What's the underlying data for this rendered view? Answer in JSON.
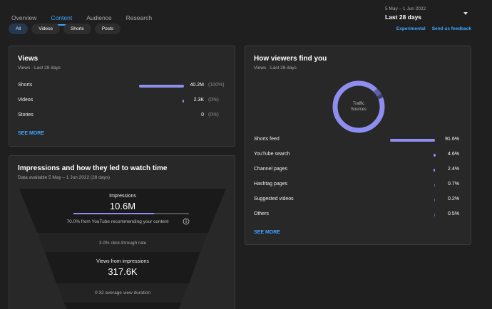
{
  "tabs": [
    "Overview",
    "Content",
    "Audience",
    "Research"
  ],
  "date": {
    "range": "5 May – 1 Jun 2022",
    "period": "Last 28 days"
  },
  "chips": [
    "All",
    "Videos",
    "Shorts",
    "Posts"
  ],
  "links": {
    "experimental": "Experimental",
    "feedback": "Send us feedback"
  },
  "views": {
    "title": "Views",
    "subtitle": "Views · Last 28 days",
    "rows": [
      {
        "label": "Shorts",
        "value": "40.2M",
        "pct": "(100%)",
        "share": 1.0
      },
      {
        "label": "Videos",
        "value": "2.3K",
        "pct": "(0%)",
        "share": 0.0
      },
      {
        "label": "Stories",
        "value": "0",
        "pct": "(0%)",
        "share": 0.0
      }
    ],
    "see_more": "SEE MORE"
  },
  "find": {
    "title": "How viewers find you",
    "subtitle": "Views · Last 28 days",
    "donut_line1": "Traffic",
    "donut_line2": "Sources",
    "rows": [
      {
        "label": "Shorts feed",
        "value": "91.6%",
        "share": 0.916
      },
      {
        "label": "YouTube search",
        "value": "4.6%",
        "share": 0.046
      },
      {
        "label": "Channel pages",
        "value": "2.4%",
        "share": 0.024
      },
      {
        "label": "Hashtag pages",
        "value": "0.7%",
        "share": 0.007
      },
      {
        "label": "Suggested videos",
        "value": "0.2%",
        "share": 0.002
      },
      {
        "label": "Others",
        "value": "0.5%",
        "share": 0.005
      }
    ],
    "see_more": "SEE MORE"
  },
  "impressions": {
    "title": "Impressions and how they led to watch time",
    "subtitle": "Data available 5 May – 1 Jun 2022 (28 days)",
    "imp_label": "Impressions",
    "imp_value": "10.6M",
    "imp_bar_share": 0.7,
    "imp_note": "70.0% from YouTube recommending your content",
    "ctr": "3.0% click-through rate",
    "vfi_label": "Views from impressions",
    "vfi_value": "317.6K",
    "avd": "0:32 average view duration"
  },
  "colors": {
    "accent": "#3ea6ff",
    "bar": "#8e8ef0",
    "background": "#1f1f1f",
    "card": "#282828"
  }
}
